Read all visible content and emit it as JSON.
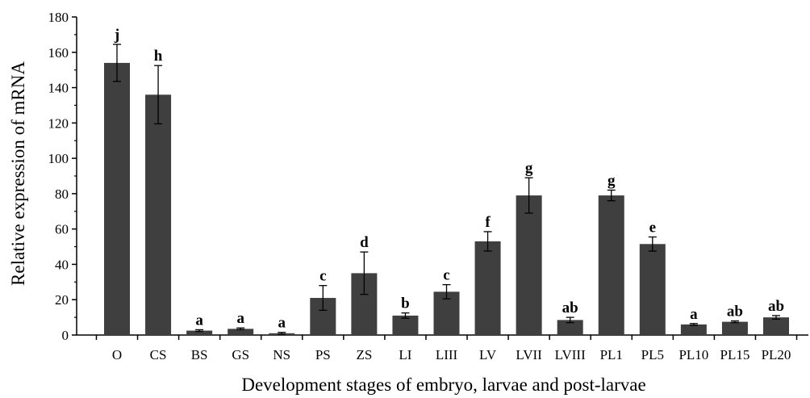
{
  "chart_data": {
    "type": "bar",
    "title": "",
    "xlabel": "Development stages of embryo, larvae and post-larvae",
    "ylabel": "Relative expression of mRNA",
    "ylim": [
      0,
      180
    ],
    "yticks": [
      0,
      20,
      40,
      60,
      80,
      100,
      120,
      140,
      160,
      180
    ],
    "categories": [
      "O",
      "CS",
      "BS",
      "GS",
      "NS",
      "PS",
      "ZS",
      "LI",
      "LIII",
      "LV",
      "LVII",
      "LVIII",
      "PL1",
      "PL5",
      "PL10",
      "PL15",
      "PL20"
    ],
    "values": [
      154,
      136,
      2.5,
      3.5,
      1,
      21,
      35,
      11,
      24.5,
      53,
      79,
      8.5,
      79,
      51.5,
      6,
      7.5,
      10
    ],
    "errors": [
      10.5,
      16.5,
      0.5,
      0.5,
      0.5,
      7,
      12,
      1.5,
      4,
      5.5,
      10,
      1.5,
      3,
      4,
      0.5,
      0.5,
      1
    ],
    "significance": [
      "j",
      "h",
      "a",
      "a",
      "a",
      "c",
      "d",
      "b",
      "c",
      "f",
      "g",
      "ab",
      "g",
      "e",
      "a",
      "ab",
      "ab"
    ],
    "colors": {
      "bar": "#3f3f3f",
      "axis": "#000000"
    },
    "grid": false,
    "legend": "none"
  }
}
